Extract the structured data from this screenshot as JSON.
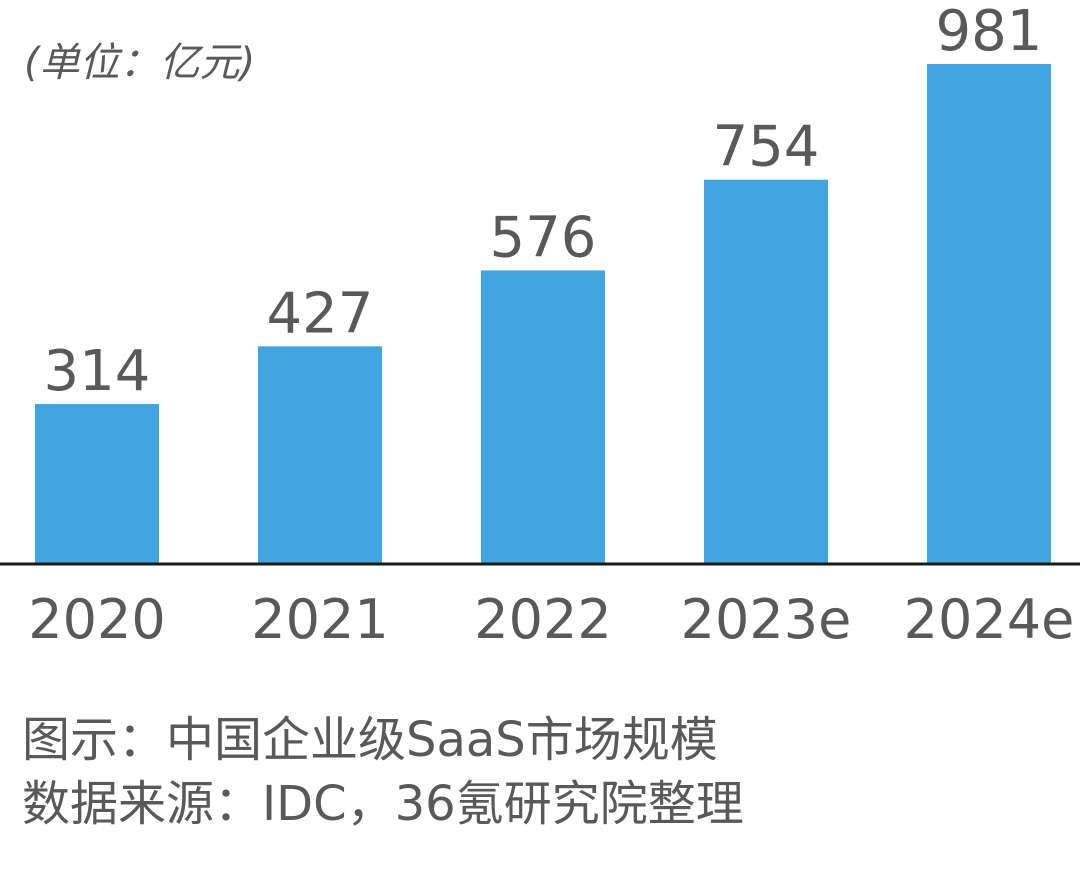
{
  "chart_data": {
    "type": "bar",
    "unit_label": "(单位：亿元)",
    "categories": [
      "2020",
      "2021",
      "2022",
      "2023e",
      "2024e"
    ],
    "values": [
      314,
      427,
      576,
      754,
      981
    ],
    "data_labels": [
      "314",
      "427",
      "576",
      "754",
      "981"
    ],
    "ylim": [
      0,
      981
    ],
    "grid": false,
    "legend": "none",
    "colors": {
      "bar": "#41a6e0",
      "text": "#595959",
      "axis": "#1a1a1a"
    }
  },
  "caption": {
    "line1": "图示：中国企业级SaaS市场规模",
    "line2": "数据来源：IDC，36氪研究院整理"
  }
}
